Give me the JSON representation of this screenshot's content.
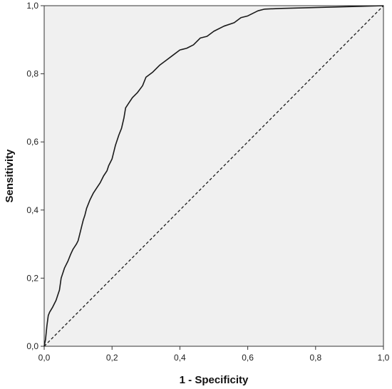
{
  "chart_data": {
    "type": "line",
    "title": "",
    "xlabel": "1 - Specificity",
    "ylabel": "Sensitivity",
    "xlim": [
      0,
      1
    ],
    "ylim": [
      0,
      1
    ],
    "grid": false,
    "x_ticks": [
      "0,0",
      "0,2",
      "0,4",
      "0,6",
      "0,8",
      "1,0"
    ],
    "y_ticks": [
      "0,0",
      "0,2",
      "0,4",
      "0,6",
      "0,8",
      "1,0"
    ],
    "series": [
      {
        "style": "solid",
        "color": "#1a1a1a",
        "points": [
          [
            0.0,
            0.0
          ],
          [
            0.004,
            0.02
          ],
          [
            0.008,
            0.06
          ],
          [
            0.012,
            0.09
          ],
          [
            0.016,
            0.1
          ],
          [
            0.025,
            0.115
          ],
          [
            0.035,
            0.135
          ],
          [
            0.04,
            0.15
          ],
          [
            0.045,
            0.165
          ],
          [
            0.05,
            0.2
          ],
          [
            0.055,
            0.215
          ],
          [
            0.06,
            0.23
          ],
          [
            0.07,
            0.25
          ],
          [
            0.078,
            0.27
          ],
          [
            0.085,
            0.285
          ],
          [
            0.095,
            0.3
          ],
          [
            0.1,
            0.31
          ],
          [
            0.105,
            0.33
          ],
          [
            0.11,
            0.35
          ],
          [
            0.115,
            0.37
          ],
          [
            0.12,
            0.385
          ],
          [
            0.125,
            0.405
          ],
          [
            0.135,
            0.43
          ],
          [
            0.145,
            0.45
          ],
          [
            0.155,
            0.465
          ],
          [
            0.165,
            0.48
          ],
          [
            0.175,
            0.5
          ],
          [
            0.185,
            0.515
          ],
          [
            0.19,
            0.53
          ],
          [
            0.2,
            0.55
          ],
          [
            0.205,
            0.57
          ],
          [
            0.21,
            0.59
          ],
          [
            0.22,
            0.62
          ],
          [
            0.228,
            0.64
          ],
          [
            0.235,
            0.67
          ],
          [
            0.24,
            0.7
          ],
          [
            0.25,
            0.715
          ],
          [
            0.26,
            0.73
          ],
          [
            0.275,
            0.745
          ],
          [
            0.29,
            0.765
          ],
          [
            0.3,
            0.79
          ],
          [
            0.32,
            0.805
          ],
          [
            0.34,
            0.825
          ],
          [
            0.36,
            0.84
          ],
          [
            0.38,
            0.855
          ],
          [
            0.4,
            0.87
          ],
          [
            0.42,
            0.875
          ],
          [
            0.44,
            0.885
          ],
          [
            0.46,
            0.905
          ],
          [
            0.48,
            0.91
          ],
          [
            0.5,
            0.925
          ],
          [
            0.53,
            0.94
          ],
          [
            0.56,
            0.95
          ],
          [
            0.58,
            0.965
          ],
          [
            0.6,
            0.97
          ],
          [
            0.63,
            0.985
          ],
          [
            0.65,
            0.99
          ],
          [
            0.7,
            0.992
          ],
          [
            1.0,
            1.0
          ]
        ]
      },
      {
        "style": "dashed",
        "color": "#1a1a1a",
        "points": [
          [
            0,
            0
          ],
          [
            1,
            1
          ]
        ]
      }
    ]
  }
}
